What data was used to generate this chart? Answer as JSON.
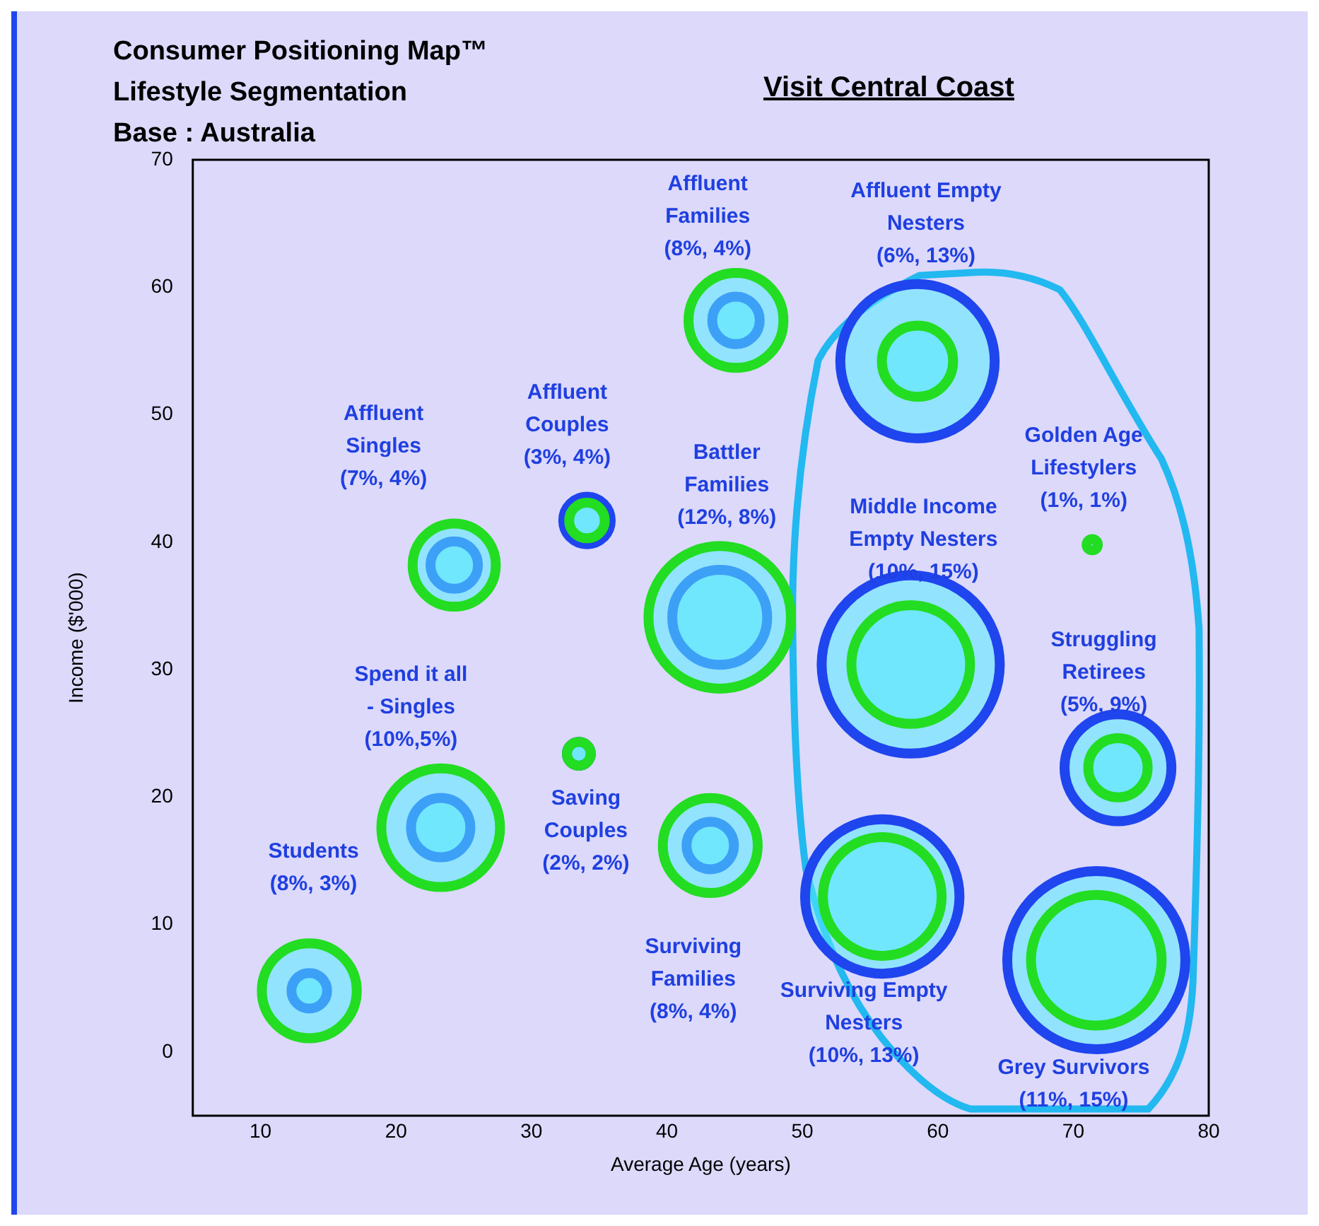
{
  "chart_data": {
    "type": "bubble",
    "title": "Consumer Positioning Map™\nLifestyle Segmentation\nBase : Australia",
    "subtitle": "Visit Central Coast",
    "xlabel": "Average Age (years)",
    "ylabel": "Income ($'000)",
    "xlim": [
      5,
      80
    ],
    "xticks": [
      10,
      20,
      30,
      40,
      50,
      60,
      70,
      80
    ],
    "ylim": [
      -5,
      70
    ],
    "yticks": [
      0,
      10,
      20,
      30,
      40,
      50,
      60,
      70
    ],
    "grid": false,
    "legend": false,
    "series": [
      {
        "color": "#22dd22",
        "x": [
          13.6,
          23.3,
          24.3,
          33.5,
          34.1,
          45.1,
          43.9,
          43.2,
          58.5,
          58.0,
          71.4,
          73.3,
          55.9,
          71.7
        ],
        "values": [
          4.8,
          17.6,
          38.2,
          23.4,
          41.7,
          57.4,
          34.1,
          16.2,
          54.2,
          30.4,
          39.8,
          22.3,
          12.2,
          7.2
        ],
        "sizes": [
          0.284,
          0.444,
          0.218,
          0.018,
          0.04,
          0.284,
          0.64,
          0.284,
          0.16,
          0.444,
          0.004,
          0.111,
          0.444,
          0.538
        ]
      },
      {
        "color": "#1f45ee",
        "x": [
          13.6,
          23.3,
          24.3,
          33.5,
          34.1,
          45.1,
          43.9,
          43.2,
          58.5,
          58.0,
          73.3,
          55.9,
          71.7
        ],
        "values": [
          4.8,
          17.6,
          38.2,
          23.4,
          41.7,
          57.4,
          34.1,
          16.2,
          54.2,
          30.4,
          22.3,
          12.2,
          7.2
        ],
        "sizes": [
          0.04,
          0.111,
          0.071,
          0.018,
          0.071,
          0.071,
          0.284,
          0.071,
          0.751,
          1,
          0.36,
          0.751,
          1
        ]
      }
    ],
    "annotations": [
      "Students\n(8%, 3%)",
      "Spend it all\n- Singles\n(10%,5%)",
      "Affluent\nSingles\n(7%, 4%)",
      "Saving\nCouples\n(2%, 2%)",
      "Affluent\nCouples\n(3%, 4%)",
      "Affluent\nFamilies\n(8%, 4%)",
      "Battler\nFamilies\n(12%, 8%)",
      "Surviving\nFamilies\n(8%, 4%)",
      "Affluent Empty\nNesters\n(6%, 13%)",
      "Middle Income\nEmpty Nesters\n(10%, 15%)",
      "Golden Age\nLifestylers\n(1%, 1%)",
      "Struggling\nRetirees\n(5%, 9%)",
      "Surviving Empty\nNesters\n(10%, 13%)",
      "Grey Survivors\n(11%, 15%)"
    ]
  }
}
